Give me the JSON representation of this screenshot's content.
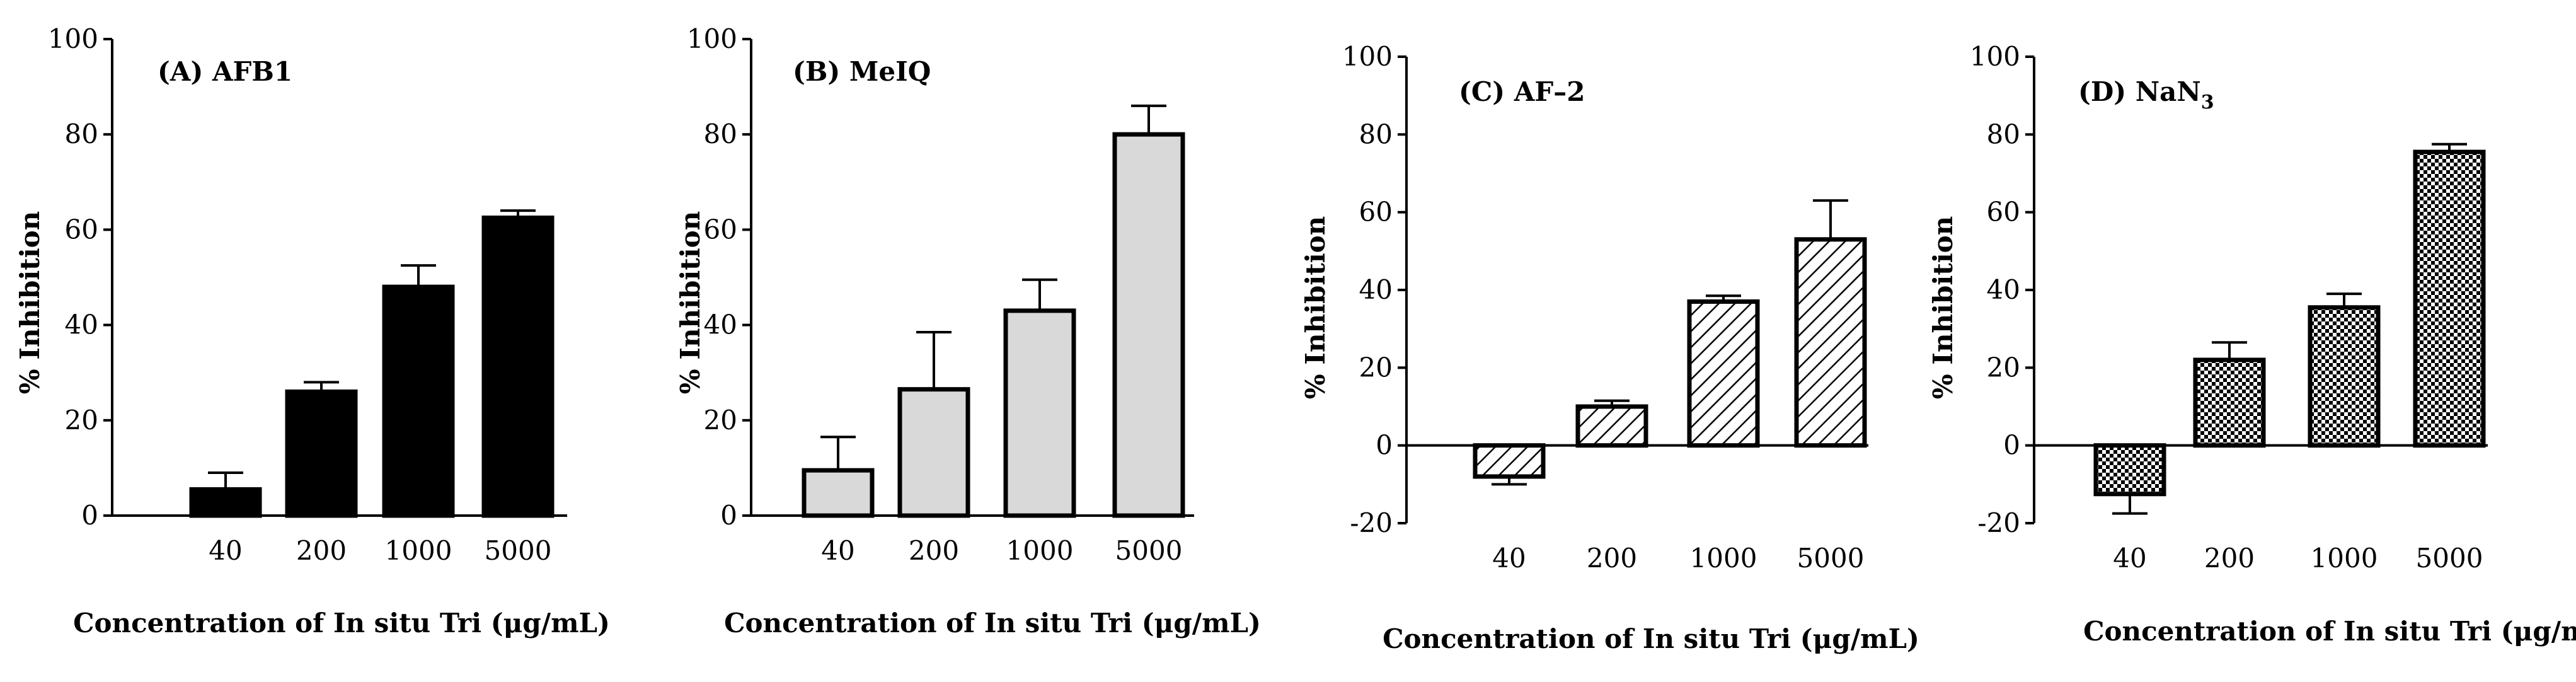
{
  "chart_data": [
    {
      "type": "bar",
      "panel_label": "(A) AFB1",
      "title_main": "(A) AFB1",
      "title_sub": "",
      "categories": [
        "40",
        "200",
        "1000",
        "5000"
      ],
      "values": [
        5.5,
        26,
        48,
        62.5
      ],
      "errors": [
        3.5,
        2,
        4.5,
        1.5
      ],
      "ylim": [
        0,
        100
      ],
      "yticks": [
        "0",
        "20",
        "40",
        "60",
        "80",
        "100"
      ],
      "ylabel": "% Inhibition",
      "xlabel": "Concentration of In situ Tri (μg/mL)",
      "fill": "solid-black"
    },
    {
      "type": "bar",
      "panel_label": "(B) MeIQ",
      "title_main": "(B) MeIQ",
      "title_sub": "",
      "categories": [
        "40",
        "200",
        "1000",
        "5000"
      ],
      "values": [
        9.5,
        26.5,
        43,
        80
      ],
      "errors": [
        7,
        12,
        6.5,
        6
      ],
      "ylim": [
        0,
        100
      ],
      "yticks": [
        "0",
        "20",
        "40",
        "60",
        "80",
        "100"
      ],
      "ylabel": "% Inhibition",
      "xlabel": "Concentration of In situ Tri (μg/mL)",
      "fill": "light-gray"
    },
    {
      "type": "bar",
      "panel_label": "(C) AF–2",
      "title_main": "(C) AF–2",
      "title_sub": "",
      "categories": [
        "40",
        "200",
        "1000",
        "5000"
      ],
      "values": [
        -8,
        10,
        37,
        53
      ],
      "errors": [
        2,
        1.5,
        1.5,
        10
      ],
      "ylim": [
        -20,
        100
      ],
      "yticks": [
        "-20",
        "0",
        "20",
        "40",
        "60",
        "80",
        "100"
      ],
      "ylabel": "% Inhibition",
      "xlabel": "Concentration of In situ Tri (μg/mL)",
      "fill": "diagonal-hatch"
    },
    {
      "type": "bar",
      "panel_label": "(D) NaN3",
      "title_main": "(D) NaN",
      "title_sub": "3",
      "categories": [
        "40",
        "200",
        "1000",
        "5000"
      ],
      "values": [
        -12.5,
        22,
        35.5,
        75.5
      ],
      "errors": [
        5,
        4.5,
        3.5,
        2
      ],
      "ylim": [
        -20,
        100
      ],
      "yticks": [
        "-20",
        "0",
        "20",
        "40",
        "60",
        "80",
        "100"
      ],
      "ylabel": "% Inhibition",
      "xlabel": "Concentration of In situ Tri (μg/mL)",
      "fill": "checker"
    }
  ]
}
